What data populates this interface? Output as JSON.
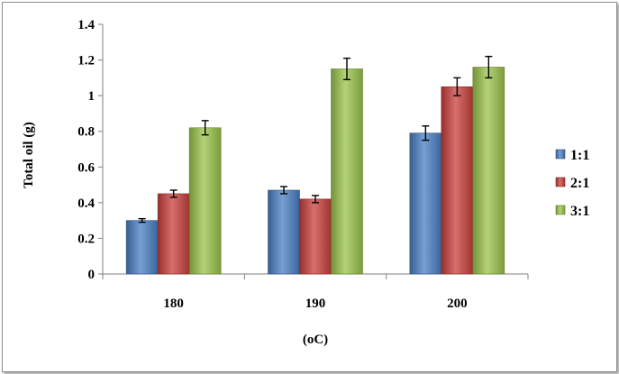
{
  "chart_data": {
    "type": "bar",
    "categories": [
      "180",
      "190",
      "200"
    ],
    "series": [
      {
        "name": "1:1",
        "values": [
          0.3,
          0.47,
          0.79
        ],
        "errors": [
          0.01,
          0.02,
          0.04
        ],
        "color": "#4a7fc4"
      },
      {
        "name": "2:1",
        "values": [
          0.45,
          0.42,
          1.05
        ],
        "errors": [
          0.02,
          0.02,
          0.05
        ],
        "color": "#c9403c"
      },
      {
        "name": "3:1",
        "values": [
          0.82,
          1.15,
          1.16
        ],
        "errors": [
          0.04,
          0.06,
          0.06
        ],
        "color": "#9bc44a"
      }
    ],
    "xlabel": "(oC)",
    "ylabel": "Total oil (g)",
    "ylim": [
      0,
      1.4
    ],
    "yticks": [
      "0",
      "0.2",
      "0.4",
      "0.6",
      "0.8",
      "1",
      "1.2",
      "1.4"
    ],
    "grid": false,
    "legend": "right"
  }
}
